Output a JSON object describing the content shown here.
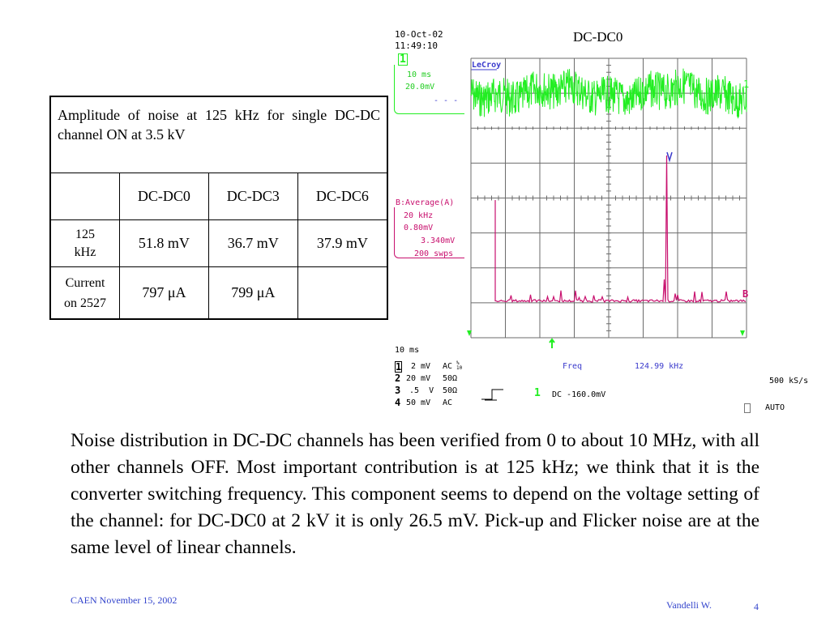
{
  "scope": {
    "title": "DC-DC0",
    "date": "10-Oct-02",
    "time": "11:49:10",
    "brand": "LeCroy",
    "ch1_marker": "1",
    "ch1_box": {
      "timebase": "10 ms",
      "volts": "20.0mV",
      "dashes": "- - -"
    },
    "trace1_label": "1",
    "math_box": {
      "line1": "B:Average(A)",
      "line2": "20 kHz",
      "line3": "0.80mV",
      "line4": "3.340mV",
      "line5": "200 swps"
    },
    "traceB_label": "B",
    "timebase_bottom": "10 ms",
    "channels": [
      {
        "num": "1",
        "v": "2 mV",
        "cpl": "AC"
      },
      {
        "num": "2",
        "v": "20 mV",
        "cpl": "50Ω"
      },
      {
        "num": "3",
        "v": ".5  V",
        "cpl": "50Ω"
      },
      {
        "num": "4",
        "v": "50 mV",
        "cpl": "AC"
      }
    ],
    "ac_suffix": "% 10",
    "measurement": {
      "label": "Freq",
      "value": "124.99 kHz"
    },
    "trigger": {
      "channel": "1",
      "info": "DC -160.0mV"
    },
    "sample_rate": "500 kS/s",
    "mode": "AUTO",
    "colors": {
      "ch1": "#22ee22",
      "math": "#c8106e",
      "grid": "#666666",
      "text_blue": "#3a3acc"
    }
  },
  "table": {
    "caption": "Amplitude of noise at 125 kHz for single DC-DC channel ON at 3.5 kV",
    "headers": [
      "",
      "DC-DC0",
      "DC-DC3",
      "DC-DC6"
    ],
    "row1": {
      "label": "125 kHz",
      "values": [
        "51.8 mV",
        "36.7 mV",
        "37.9 mV"
      ]
    },
    "row2": {
      "label_line1": "Current",
      "label_line2": "on 2527",
      "values": [
        "797 μA",
        "799 μA",
        ""
      ]
    }
  },
  "body_text": "Noise distribution in DC-DC channels has been verified from 0 to about 10 MHz, with all other channels OFF. Most important contribution is at 125 kHz; we think that it is the converter switching frequency. This component seems to depend on the voltage setting of the channel: for DC-DC0 at 2 kV it is only 26.5 mV. Pick-up and Flicker noise are at the same level of linear channels.",
  "footer": {
    "left": "CAEN November 15, 2002",
    "author": "Vandelli W.",
    "page": "4"
  }
}
